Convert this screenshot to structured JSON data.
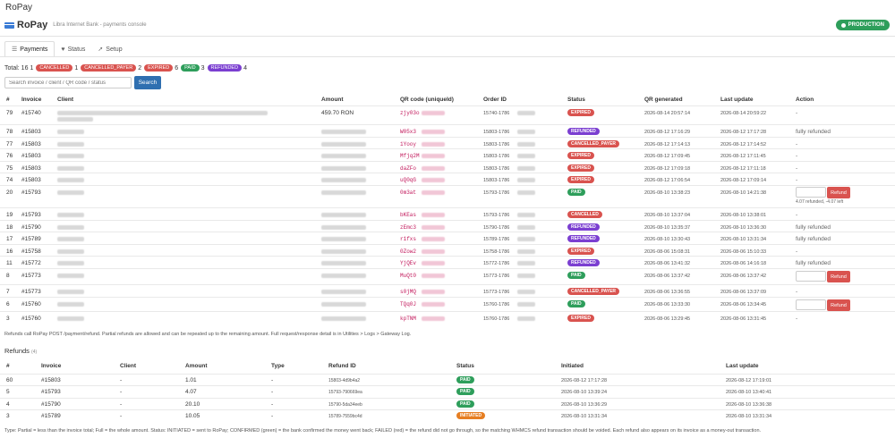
{
  "window_title": "RoPay",
  "brand": {
    "name": "RoPay",
    "subtitle": "Libra Internet Bank - payments console"
  },
  "environment_badge": "PRODUCTION",
  "tabs": [
    {
      "label": "Payments",
      "icon": "list-icon",
      "active": true
    },
    {
      "label": "Status",
      "icon": "heart-icon",
      "active": false
    },
    {
      "label": "Setup",
      "icon": "rocket-icon",
      "active": false
    }
  ],
  "totals": {
    "label": "Total: 16",
    "counts": [
      {
        "status": "CANCELLED",
        "before": "1",
        "after": "1",
        "color": "#d9534f"
      },
      {
        "status": "CANCELLED_PAYER",
        "before": "",
        "after": "2",
        "color": "#d9534f"
      },
      {
        "status": "EXPIRED",
        "before": "",
        "after": "6",
        "color": "#d9534f"
      },
      {
        "status": "PAID",
        "before": "",
        "after": "3",
        "color": "#2e9e5b"
      },
      {
        "status": "REFUNDED",
        "before": "",
        "after": "4",
        "color": "#7b3fd1"
      }
    ]
  },
  "search": {
    "placeholder": "Search invoice / client / QR code / status",
    "button": "Search"
  },
  "payments": {
    "headers": [
      "#",
      "Invoice",
      "Client",
      "Amount",
      "QR code (uniqueId)",
      "Order ID",
      "Status",
      "QR generated",
      "Last update",
      "Action"
    ],
    "rows": [
      {
        "id": "79",
        "invoice": "#15740",
        "amount": "459.70 RON",
        "qr": "zjy03o",
        "order": "15740-1786",
        "status": "EXPIRED",
        "generated": "2026-08-14 20:57:14",
        "updated": "2026-08-14 20:59:22",
        "action": "-"
      },
      {
        "id": "78",
        "invoice": "#15803",
        "amount": "",
        "qr": "W05x3",
        "order": "15803-1786",
        "status": "REFUNDED",
        "generated": "2026-08-12 17:16:29",
        "updated": "2026-08-12 17:17:28",
        "action": "fully refunded"
      },
      {
        "id": "77",
        "invoice": "#15803",
        "amount": "",
        "qr": "1Yooy",
        "order": "15803-1786",
        "status": "CANCELLED_PAYER",
        "generated": "2026-08-12 17:14:13",
        "updated": "2026-08-12 17:14:52",
        "action": "-"
      },
      {
        "id": "76",
        "invoice": "#15803",
        "amount": "",
        "qr": "Mfjq2M",
        "order": "15803-1786",
        "status": "EXPIRED",
        "generated": "2026-08-12 17:09:45",
        "updated": "2026-08-12 17:11:45",
        "action": "-"
      },
      {
        "id": "75",
        "invoice": "#15803",
        "amount": "",
        "qr": "daZFo",
        "order": "15803-1786",
        "status": "EXPIRED",
        "generated": "2026-08-12 17:09:18",
        "updated": "2026-08-12 17:11:18",
        "action": "-"
      },
      {
        "id": "74",
        "invoice": "#15803",
        "amount": "",
        "qr": "uQ0qG",
        "order": "15803-1786",
        "status": "EXPIRED",
        "generated": "2026-08-12 17:06:54",
        "updated": "2026-08-12 17:09:14",
        "action": "-"
      },
      {
        "id": "20",
        "invoice": "#15793",
        "amount": "",
        "qr": "0m3at",
        "order": "15793-1786",
        "status": "PAID",
        "generated": "2026-08-10 13:38:23",
        "updated": "2026-08-10 14:21:38",
        "action": "refund",
        "refund_note": "4.07 refunded, -4.07 left",
        "refund_label": "Refund"
      },
      {
        "id": "19",
        "invoice": "#15793",
        "amount": "",
        "qr": "bKEas",
        "order": "15793-1786",
        "status": "CANCELLED",
        "generated": "2026-08-10 13:37:04",
        "updated": "2026-08-10 13:38:01",
        "action": "-"
      },
      {
        "id": "18",
        "invoice": "#15790",
        "amount": "",
        "qr": "zEmc3",
        "order": "15790-1786",
        "status": "REFUNDED",
        "generated": "2026-08-10 13:35:37",
        "updated": "2026-08-10 13:36:30",
        "action": "fully refunded"
      },
      {
        "id": "17",
        "invoice": "#15789",
        "amount": "",
        "qr": "r1fxs",
        "order": "15789-1786",
        "status": "REFUNDED",
        "generated": "2026-08-10 13:30:43",
        "updated": "2026-08-10 13:31:34",
        "action": "fully refunded"
      },
      {
        "id": "16",
        "invoice": "#15758",
        "amount": "",
        "qr": "0Zow2",
        "order": "15758-1786",
        "status": "EXPIRED",
        "generated": "2026-08-06 15:08:31",
        "updated": "2026-08-06 15:10:33",
        "action": "-"
      },
      {
        "id": "11",
        "invoice": "#15772",
        "amount": "",
        "qr": "YjQEv",
        "order": "15772-1786",
        "status": "REFUNDED",
        "generated": "2026-08-06 13:41:32",
        "updated": "2026-08-06 14:16:18",
        "action": "fully refunded"
      },
      {
        "id": "8",
        "invoice": "#15773",
        "amount": "",
        "qr": "MuQt0",
        "order": "15773-1786",
        "status": "PAID",
        "generated": "2026-08-06 13:37:42",
        "updated": "2026-08-06 13:37:42",
        "action": "refund",
        "refund_label": "Refund"
      },
      {
        "id": "7",
        "invoice": "#15773",
        "amount": "",
        "qr": "s0jMQ",
        "order": "15773-1786",
        "status": "CANCELLED_PAYER",
        "generated": "2026-08-06 13:36:55",
        "updated": "2026-08-06 13:37:09",
        "action": "-"
      },
      {
        "id": "6",
        "invoice": "#15760",
        "amount": "",
        "qr": "TQq0J",
        "order": "15760-1786",
        "status": "PAID",
        "generated": "2026-08-06 13:33:30",
        "updated": "2026-08-06 13:34:45",
        "action": "refund",
        "refund_label": "Refund"
      },
      {
        "id": "3",
        "invoice": "#15760",
        "amount": "",
        "qr": "kpTNM",
        "order": "15760-1786",
        "status": "EXPIRED",
        "generated": "2026-08-06 13:29:45",
        "updated": "2026-08-06 13:31:45",
        "action": "-"
      }
    ]
  },
  "refund_note": "Refunds call RoPay POST /payment/refund. Partial refunds are allowed and can be repeated up to the remaining amount. Full request/response detail is in Utilities > Logs > Gateway Log.",
  "refunds": {
    "title": "Refunds",
    "count": "(4)",
    "headers": [
      "#",
      "Invoice",
      "Client",
      "Amount",
      "Type",
      "Refund ID",
      "Status",
      "Initiated",
      "Last update"
    ],
    "rows": [
      {
        "id": "60",
        "invoice": "#15803",
        "client": "-",
        "amount": "1.01",
        "type": "-",
        "refund_id": "15803-4d9b4a2",
        "status": "PAID",
        "initiated": "2026-08-12 17:17:28",
        "updated": "2026-08-12 17:19:01"
      },
      {
        "id": "5",
        "invoice": "#15793",
        "client": "-",
        "amount": "4.07",
        "type": "-",
        "refund_id": "15793-790669ea",
        "status": "PAID",
        "initiated": "2026-08-10 13:39:24",
        "updated": "2026-08-10 13:40:41"
      },
      {
        "id": "4",
        "invoice": "#15790",
        "client": "-",
        "amount": "20.10",
        "type": "-",
        "refund_id": "15790-5da34eeb",
        "status": "PAID",
        "initiated": "2026-08-10 13:36:29",
        "updated": "2026-08-10 13:36:38"
      },
      {
        "id": "3",
        "invoice": "#15789",
        "client": "-",
        "amount": "10.05",
        "type": "-",
        "refund_id": "15789-7559bc4d",
        "status": "INITIATED",
        "initiated": "2026-08-10 13:31:34",
        "updated": "2026-08-10 13:31:34"
      }
    ]
  },
  "footer_note": "Type: Partial = less than the invoice total; Full = the whole amount. Status: INITIATED = sent to RoPay; CONFIRMED (green) = the bank confirmed the money went back; FAILED (red) = the refund did not go through, so the matching WHMCS refund transaction should be voided. Each refund also appears on its invoice as a money-out transaction.",
  "status_colors": {
    "EXPIRED": "#d9534f",
    "CANCELLED": "#d9534f",
    "CANCELLED_PAYER": "#d9534f",
    "REFUNDED": "#7b3fd1",
    "PAID": "#2e9e5b",
    "INITIATED": "#e67e22"
  }
}
